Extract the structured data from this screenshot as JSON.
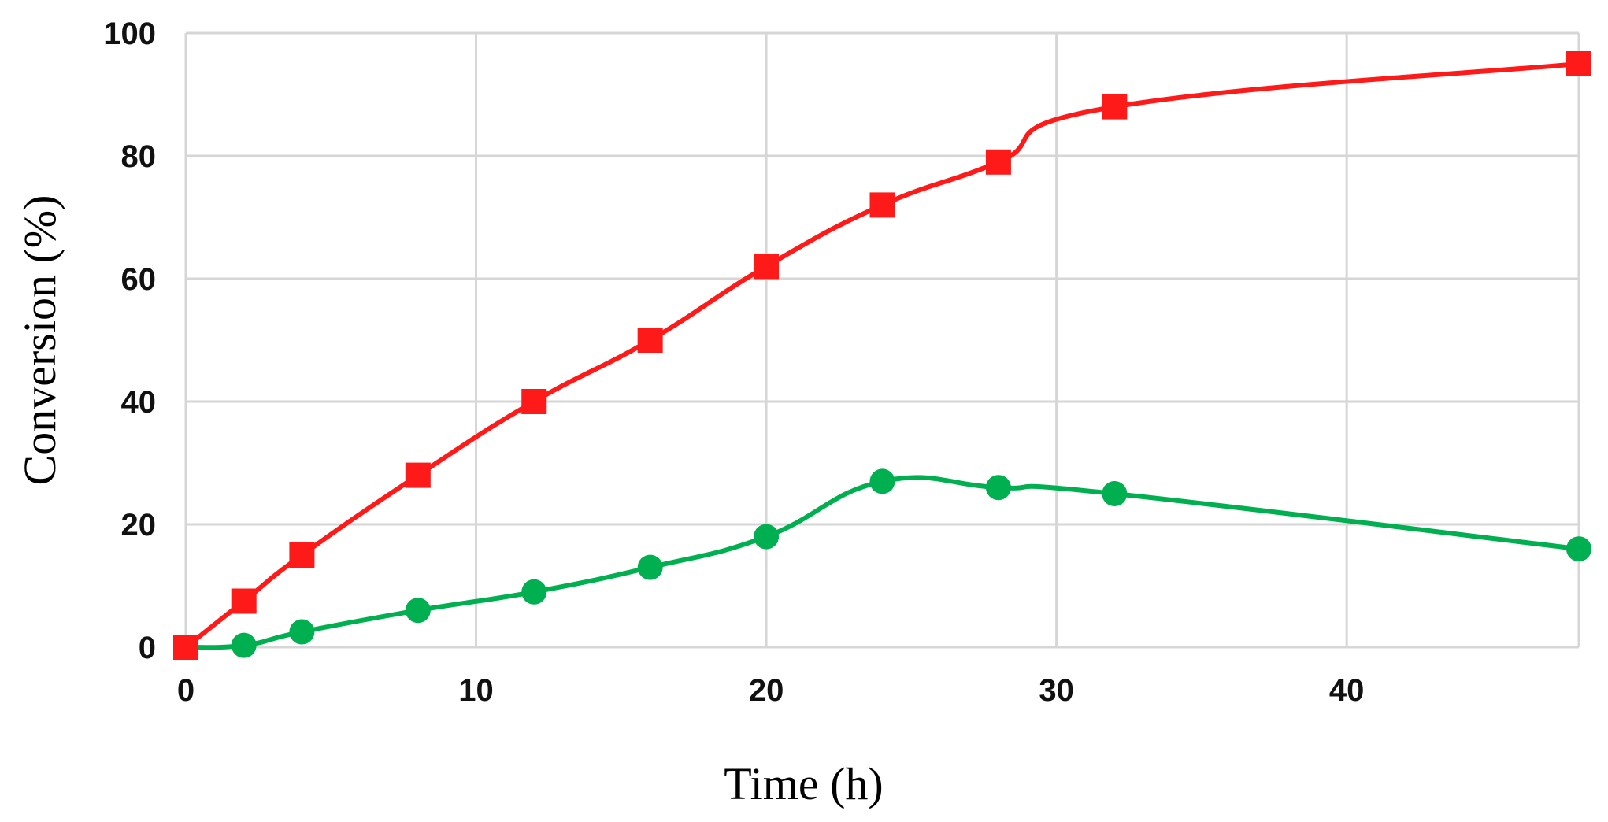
{
  "chart_data": {
    "type": "line",
    "title": "",
    "xlabel": "Time (h)",
    "ylabel": "Conversion (%)",
    "xlim": [
      0,
      48
    ],
    "ylim": [
      0,
      100
    ],
    "x_ticks": [
      0,
      10,
      20,
      30,
      40
    ],
    "y_ticks": [
      0,
      20,
      40,
      60,
      80,
      100
    ],
    "grid": true,
    "smooth_lines": true,
    "series": [
      {
        "color": "#ff1a1a",
        "marker": "square",
        "x": [
          0,
          2,
          4,
          8,
          12,
          16,
          20,
          24,
          28,
          32,
          48
        ],
        "y": [
          0,
          7.5,
          15,
          28,
          40,
          50,
          62,
          72,
          79,
          88,
          95
        ]
      },
      {
        "color": "#00b050",
        "marker": "circle",
        "x": [
          0,
          2,
          4,
          8,
          12,
          16,
          20,
          24,
          28,
          32,
          48
        ],
        "y": [
          0,
          0.3,
          2.5,
          6,
          9,
          13,
          18,
          27,
          26,
          25,
          16
        ]
      }
    ]
  }
}
